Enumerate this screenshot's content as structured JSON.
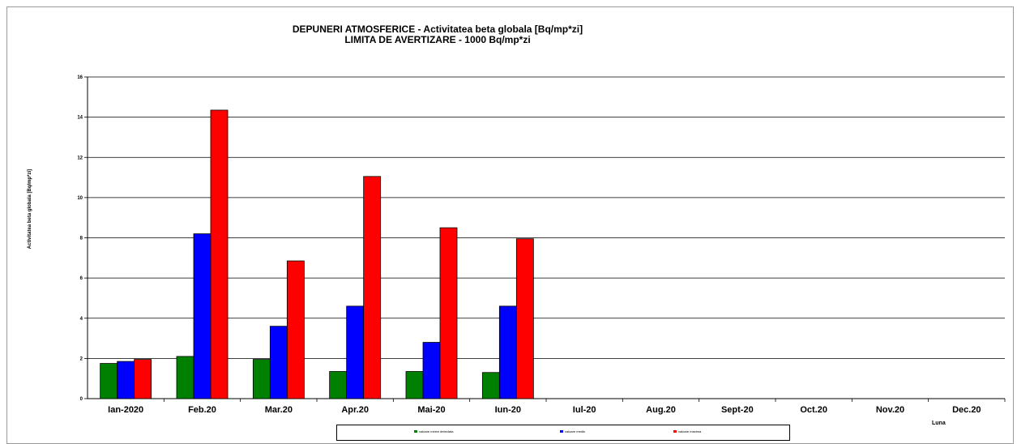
{
  "chart_data": {
    "type": "bar",
    "title_lines": [
      "DEPUNERI ATMOSFERICE - Activitatea beta globala [Bq/mp*zi]",
      "LIMITA DE AVERTIZARE  - 1000 Bq/mp*zi"
    ],
    "xlabel": "Luna",
    "ylabel": "Activitatea beta globala [Bq/mp*zi]",
    "ylim": [
      0,
      16
    ],
    "yticks": [
      0,
      2,
      4,
      6,
      8,
      10,
      12,
      14,
      16
    ],
    "grid": true,
    "legend_position": "bottom",
    "categories": [
      "Ian-2020",
      "Feb.20",
      "Mar.20",
      "Apr.20",
      "Mai-20",
      "Iun-20",
      "Iul-20",
      "Aug.20",
      "Sept-20",
      "Oct.20",
      "Nov.20",
      "Dec.20"
    ],
    "series": [
      {
        "name": "valoare minim detectata",
        "color": "#008000",
        "values": [
          1.75,
          2.1,
          1.95,
          1.35,
          1.35,
          1.3,
          null,
          null,
          null,
          null,
          null,
          null
        ]
      },
      {
        "name": "valoare medie",
        "color": "#0000ff",
        "values": [
          1.85,
          8.2,
          3.6,
          4.6,
          2.8,
          4.6,
          null,
          null,
          null,
          null,
          null,
          null
        ]
      },
      {
        "name": "valoare maxima",
        "color": "#ff0000",
        "values": [
          1.95,
          14.35,
          6.85,
          11.05,
          8.5,
          7.95,
          null,
          null,
          null,
          null,
          null,
          null
        ]
      }
    ]
  }
}
